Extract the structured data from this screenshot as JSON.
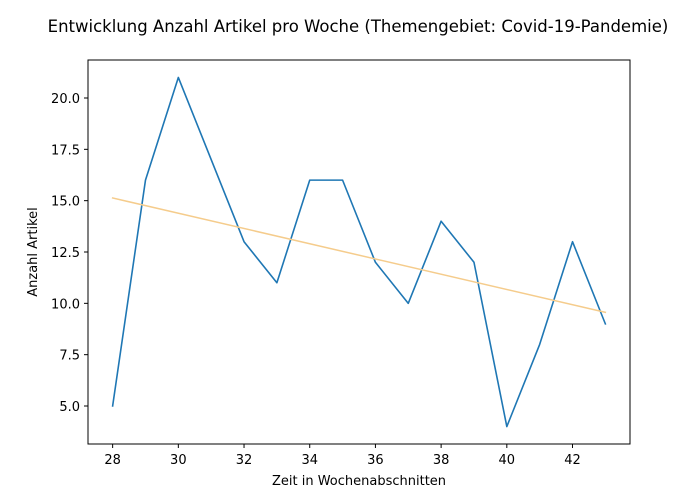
{
  "chart_data": {
    "type": "line",
    "title": "Entwicklung Anzahl Artikel pro Woche (Themengebiet: Covid-19-Pandemie)",
    "xlabel": "Zeit in Wochenabschnitten",
    "ylabel": "Anzahl Artikel",
    "xlim": [
      27.25,
      43.75
    ],
    "ylim": [
      3.15,
      21.85
    ],
    "x_ticks": [
      28,
      30,
      32,
      34,
      36,
      38,
      40,
      42
    ],
    "y_ticks": [
      5.0,
      7.5,
      10.0,
      12.5,
      15.0,
      17.5,
      20.0
    ],
    "grid": false,
    "legend": "none",
    "series": [
      {
        "kind": "data",
        "color": "#1f77b4",
        "x": [
          28,
          29,
          30,
          31,
          32,
          33,
          34,
          35,
          36,
          37,
          38,
          39,
          40,
          41,
          42,
          43
        ],
        "y": [
          5,
          16,
          21,
          17,
          13,
          11,
          16,
          16,
          12,
          10,
          14,
          12,
          4,
          8,
          13,
          9
        ]
      },
      {
        "kind": "trend",
        "color": "#f5cc8c",
        "x": [
          28,
          43
        ],
        "y": [
          15.13,
          9.56
        ]
      }
    ]
  }
}
